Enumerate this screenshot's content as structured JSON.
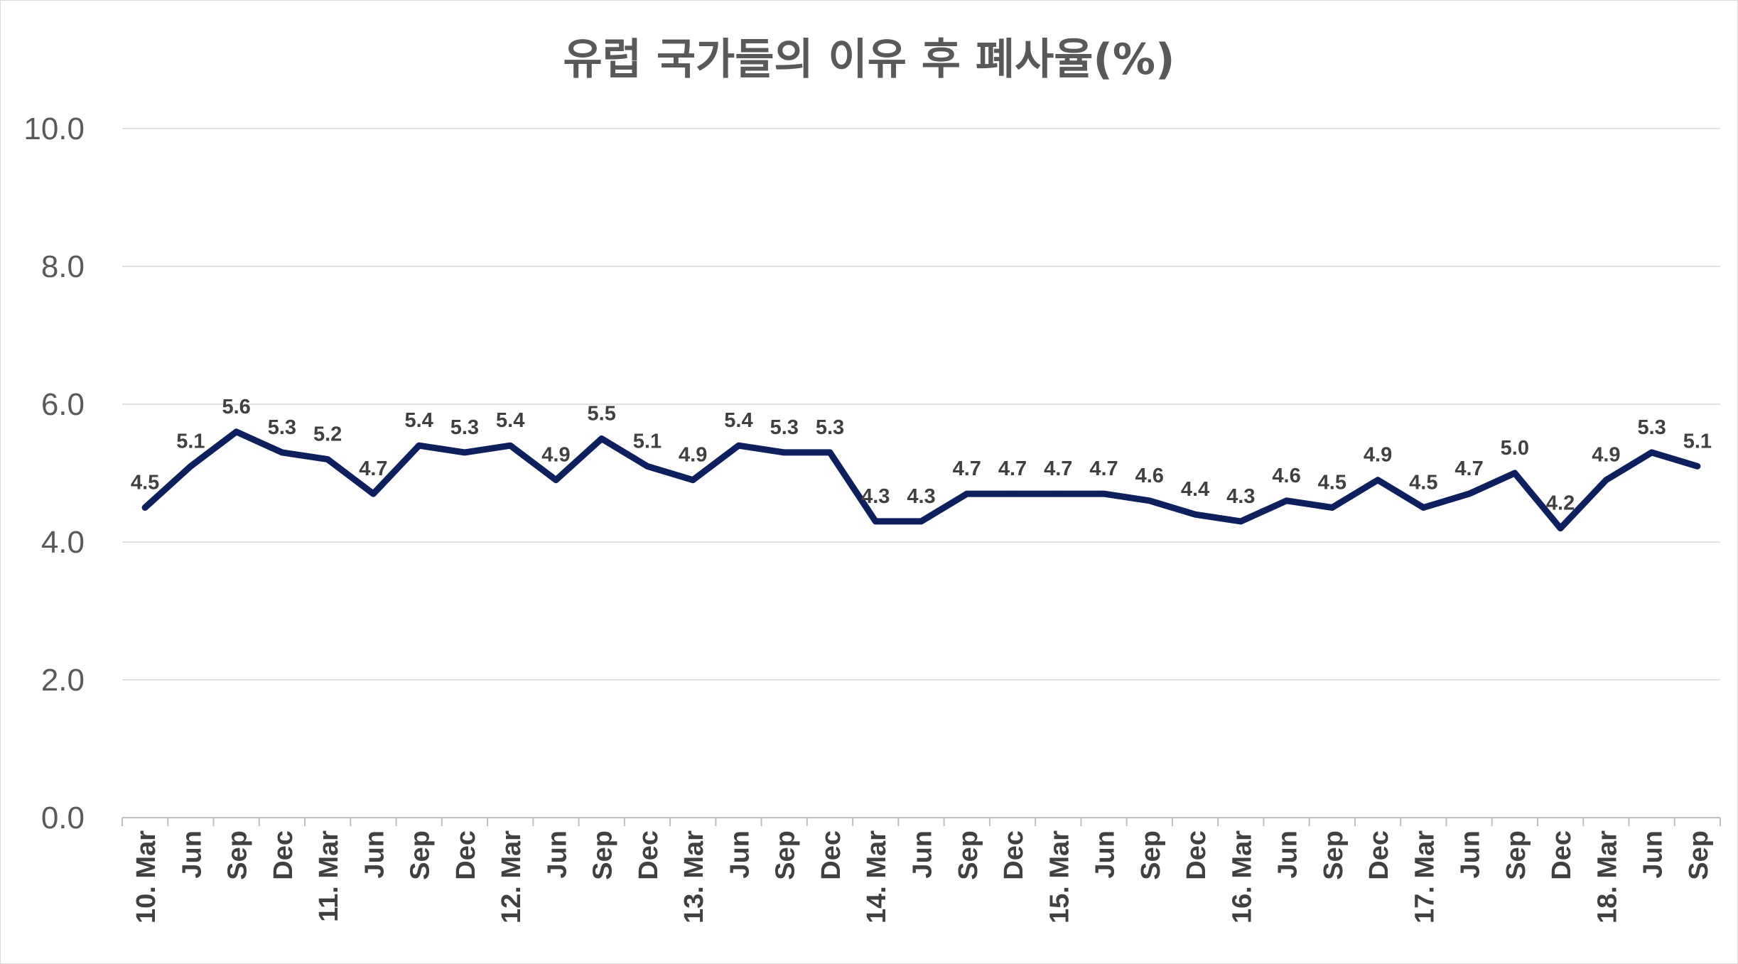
{
  "chart_data": {
    "type": "line",
    "title": "유럽 국가들의 이유 후 폐사율(%)",
    "xlabel": "",
    "ylabel": "",
    "ylim": [
      0,
      10
    ],
    "yticks": [
      "0.0",
      "2.0",
      "4.0",
      "6.0",
      "8.0",
      "10.0"
    ],
    "grid": true,
    "legend": "none",
    "categories": [
      "10. Mar",
      "Jun",
      "Sep",
      "Dec",
      "11. Mar",
      "Jun",
      "Sep",
      "Dec",
      "12. Mar",
      "Jun",
      "Sep",
      "Dec",
      "13. Mar",
      "Jun",
      "Sep",
      "Dec",
      "14. Mar",
      "Jun",
      "Sep",
      "Dec",
      "15. Mar",
      "Jun",
      "Sep",
      "Dec",
      "16. Mar",
      "Jun",
      "Sep",
      "Dec",
      "17. Mar",
      "Jun",
      "Sep",
      "Dec",
      "18. Mar",
      "Jun",
      "Sep"
    ],
    "series": [
      {
        "color": "#0d1f5c",
        "values": [
          4.5,
          5.1,
          5.6,
          5.3,
          5.2,
          4.7,
          5.4,
          5.3,
          5.4,
          4.9,
          5.5,
          5.1,
          4.9,
          5.4,
          5.3,
          5.3,
          4.3,
          4.3,
          4.7,
          4.7,
          4.7,
          4.7,
          4.6,
          4.4,
          4.3,
          4.6,
          4.5,
          4.9,
          4.5,
          4.7,
          5.0,
          4.2,
          4.9,
          5.3,
          5.1
        ],
        "labels": [
          "4.5",
          "5.1",
          "5.6",
          "5.3",
          "5.2",
          "4.7",
          "5.4",
          "5.3",
          "5.4",
          "4.9",
          "5.5",
          "5.1",
          "4.9",
          "5.4",
          "5.3",
          "5.3",
          "4.3",
          "4.3",
          "4.7",
          "4.7",
          "4.7",
          "4.7",
          "4.6",
          "4.4",
          "4.3",
          "4.6",
          "4.5",
          "4.9",
          "4.5",
          "4.7",
          "5.0",
          "4.2",
          "4.9",
          "5.3",
          "5.1"
        ]
      }
    ]
  }
}
